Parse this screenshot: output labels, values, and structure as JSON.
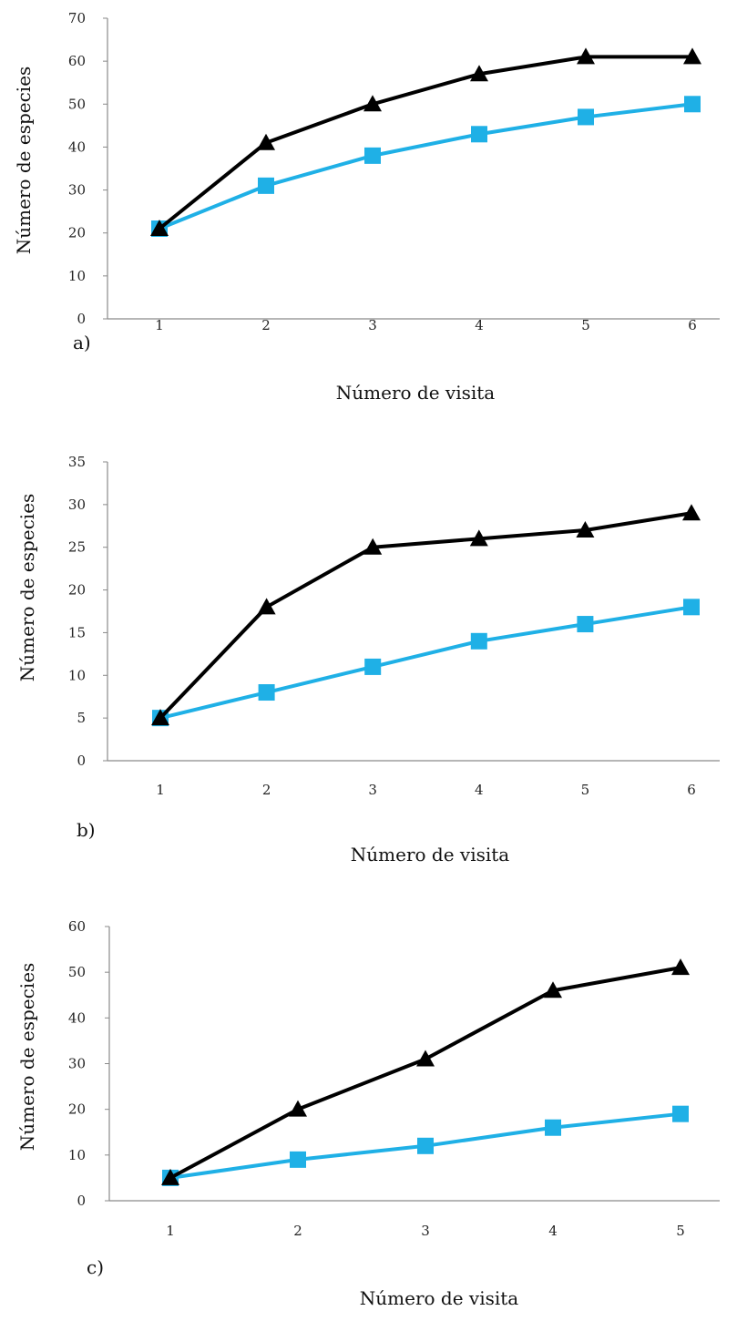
{
  "colors": {
    "series_dark": "#000000",
    "series_light": "#1fb0e6",
    "axis": "#8a8a8a",
    "text": "#222222"
  },
  "chart_data": [
    {
      "type": "line",
      "panel_label": "a)",
      "xlabel": "Número de visita",
      "ylabel": "Número de especies",
      "x": [
        1,
        2,
        3,
        4,
        5,
        6
      ],
      "ylim": [
        0,
        70
      ],
      "yticks": [
        0,
        10,
        20,
        30,
        40,
        50,
        60,
        70
      ],
      "grid": false,
      "legend": "none",
      "series": [
        {
          "marker": "triangle",
          "color": "#000000",
          "values": [
            21,
            41,
            50,
            57,
            61,
            61
          ]
        },
        {
          "marker": "square",
          "color": "#1fb0e6",
          "values": [
            21,
            31,
            38,
            43,
            47,
            50
          ]
        }
      ]
    },
    {
      "type": "line",
      "panel_label": "b)",
      "xlabel": "Número de visita",
      "ylabel": "Número de especies",
      "x": [
        1,
        2,
        3,
        4,
        5,
        6
      ],
      "ylim": [
        0,
        35
      ],
      "yticks": [
        0,
        5,
        10,
        15,
        20,
        25,
        30,
        35
      ],
      "grid": false,
      "legend": "none",
      "series": [
        {
          "marker": "triangle",
          "color": "#000000",
          "values": [
            5,
            18,
            25,
            26,
            27,
            29
          ]
        },
        {
          "marker": "square",
          "color": "#1fb0e6",
          "values": [
            5,
            8,
            11,
            14,
            16,
            18
          ]
        }
      ]
    },
    {
      "type": "line",
      "panel_label": "c)",
      "xlabel": "Número de visita",
      "ylabel": "Número de especies",
      "x": [
        1,
        2,
        3,
        4,
        5
      ],
      "ylim": [
        0,
        60
      ],
      "yticks": [
        0,
        10,
        20,
        30,
        40,
        50,
        60
      ],
      "grid": false,
      "legend": "none",
      "series": [
        {
          "marker": "triangle",
          "color": "#000000",
          "values": [
            5,
            20,
            31,
            46,
            51
          ]
        },
        {
          "marker": "square",
          "color": "#1fb0e6",
          "values": [
            5,
            9,
            12,
            16,
            19
          ]
        }
      ]
    }
  ]
}
